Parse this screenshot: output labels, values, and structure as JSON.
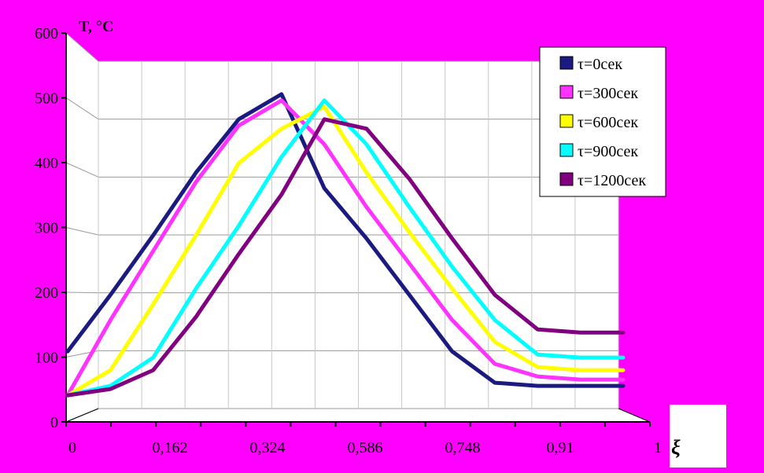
{
  "chart_data": {
    "type": "line",
    "ylabel": "T, °C",
    "xlabel": "ξ",
    "ylim": [
      0,
      600
    ],
    "yticks": [
      "0",
      "100",
      "200",
      "300",
      "400",
      "500",
      "600"
    ],
    "xticks": [
      "0",
      "0,162",
      "0,324",
      "0,586",
      "0,748",
      "0,91",
      "1"
    ],
    "legend_position": "top-right",
    "grid": true,
    "x": [
      0,
      0.077,
      0.154,
      0.231,
      0.308,
      0.385,
      0.462,
      0.538,
      0.615,
      0.692,
      0.769,
      0.846,
      0.923,
      1.0
    ],
    "series": [
      {
        "name": "τ=0сек",
        "color": "#1a1a80",
        "width": 5,
        "values": [
          100,
          190,
          285,
          385,
          470,
          510,
          360,
          280,
          190,
          100,
          50,
          45,
          45,
          45
        ]
      },
      {
        "name": "τ=300сек",
        "color": "#ff33ff",
        "width": 5,
        "values": [
          30,
          150,
          260,
          370,
          460,
          500,
          430,
          330,
          240,
          150,
          80,
          60,
          55,
          55
        ]
      },
      {
        "name": "τ=600сек",
        "color": "#ffff00",
        "width": 5,
        "values": [
          30,
          70,
          175,
          285,
          400,
          455,
          490,
          385,
          290,
          200,
          115,
          75,
          70,
          70
        ]
      },
      {
        "name": "τ=900сек",
        "color": "#00ffff",
        "width": 5,
        "values": [
          30,
          45,
          90,
          200,
          300,
          410,
          500,
          430,
          330,
          235,
          150,
          95,
          90,
          90
        ]
      },
      {
        "name": "τ=1200сек",
        "color": "#800080",
        "width": 5,
        "values": [
          30,
          40,
          70,
          155,
          255,
          350,
          470,
          455,
          375,
          280,
          190,
          135,
          130,
          130
        ]
      }
    ]
  }
}
